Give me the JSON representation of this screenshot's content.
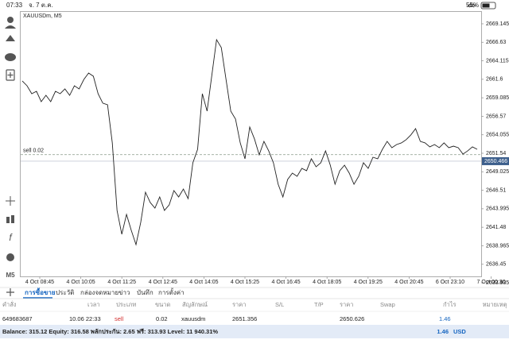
{
  "status_bar": {
    "time": "07:33",
    "date": "จ. 7 ต.ค.",
    "battery": "55%"
  },
  "chart_data": {
    "type": "line",
    "title": "XAUUSDm, M5",
    "x_labels": [
      "4 Oct 08:45",
      "4 Oct 10:05",
      "4 Oct 11:25",
      "4 Oct 12:45",
      "4 Oct 14:05",
      "4 Oct 15:25",
      "4 Oct 16:45",
      "4 Oct 18:05",
      "4 Oct 19:25",
      "4 Oct 20:45",
      "6 Oct 23:10",
      "7 Oct 00:30"
    ],
    "series": [
      {
        "color": "#222222",
        "values": [
          2661.37,
          2660.72,
          2659.64,
          2659.96,
          2658.56,
          2659.42,
          2658.56,
          2659.96,
          2659.64,
          2660.29,
          2659.42,
          2660.72,
          2660.29,
          2661.58,
          2662.45,
          2662.02,
          2659.64,
          2658.35,
          2658.13,
          2652.95,
          2643.77,
          2640.53,
          2643.23,
          2641.07,
          2639.12,
          2642.15,
          2646.25,
          2644.85,
          2644.09,
          2645.6,
          2643.77,
          2644.52,
          2646.47,
          2645.6,
          2646.68,
          2645.38,
          2650.25,
          2652.08,
          2659.64,
          2657.27,
          2662.13,
          2666.99,
          2665.91,
          2661.58,
          2657.27,
          2656.19,
          2652.95,
          2650.79,
          2655.11,
          2653.49,
          2651.33,
          2653.16,
          2651.87,
          2650.25,
          2647.33,
          2645.6,
          2647.98,
          2648.84,
          2648.41,
          2649.49,
          2649.17,
          2650.79,
          2649.71,
          2650.25,
          2651.87,
          2649.92,
          2647.33,
          2649.17,
          2649.92,
          2648.84,
          2647.33,
          2648.41,
          2650.25,
          2649.49,
          2651.0,
          2650.79,
          2652.08,
          2653.16,
          2652.3,
          2652.73,
          2652.95,
          2653.38,
          2654.03,
          2654.89,
          2653.16,
          2652.95,
          2652.41,
          2652.73,
          2652.3,
          2652.95,
          2652.3,
          2652.51,
          2652.3,
          2651.43,
          2651.87,
          2652.41,
          2652.08
        ]
      }
    ],
    "ylim": [
      2633.29,
      2670.87
    ],
    "yticks": [
      2669.145,
      2666.63,
      2664.115,
      2661.6,
      2659.085,
      2656.57,
      2654.055,
      2651.54,
      2649.025,
      2646.51,
      2643.995,
      2641.48,
      2638.965,
      2636.45,
      2633.935
    ],
    "order_line": {
      "label": "sell 0.02",
      "price": 2651.356,
      "color": "#9aa89a"
    },
    "current_price": 2650.466,
    "current_price_color": "#3d5f8c",
    "grid": false
  },
  "toolbar": {
    "timeframe": "M5"
  },
  "tabs": [
    "การซื้อขาย",
    "ประวัติ",
    "กล่องจดหมาย",
    "ข่าว",
    "บันทึก",
    "การตั้งค่า"
  ],
  "table": {
    "headers": [
      "คำสั่ง",
      "เวลา",
      "ประเภท",
      "ขนาด",
      "สัญลักษณ์",
      "ราคา",
      "S/L",
      "T/P",
      "ราคา",
      "Swap",
      "กำไร",
      "หมายเหตุ"
    ],
    "row": {
      "ticket": "649683687",
      "time": "10.06 22:33",
      "type": "sell",
      "volume": "0.02",
      "symbol": "xauusdm",
      "open_price": "2651.356",
      "price": "2650.626",
      "profit": "1.46"
    }
  },
  "balance": {
    "text": "Balance: 315.12 Equity: 316.58 พลักประกัน: 2.65 ฟรี: 313.93 Level: 11 940.31%",
    "profit": "1.46",
    "currency": "USD"
  }
}
